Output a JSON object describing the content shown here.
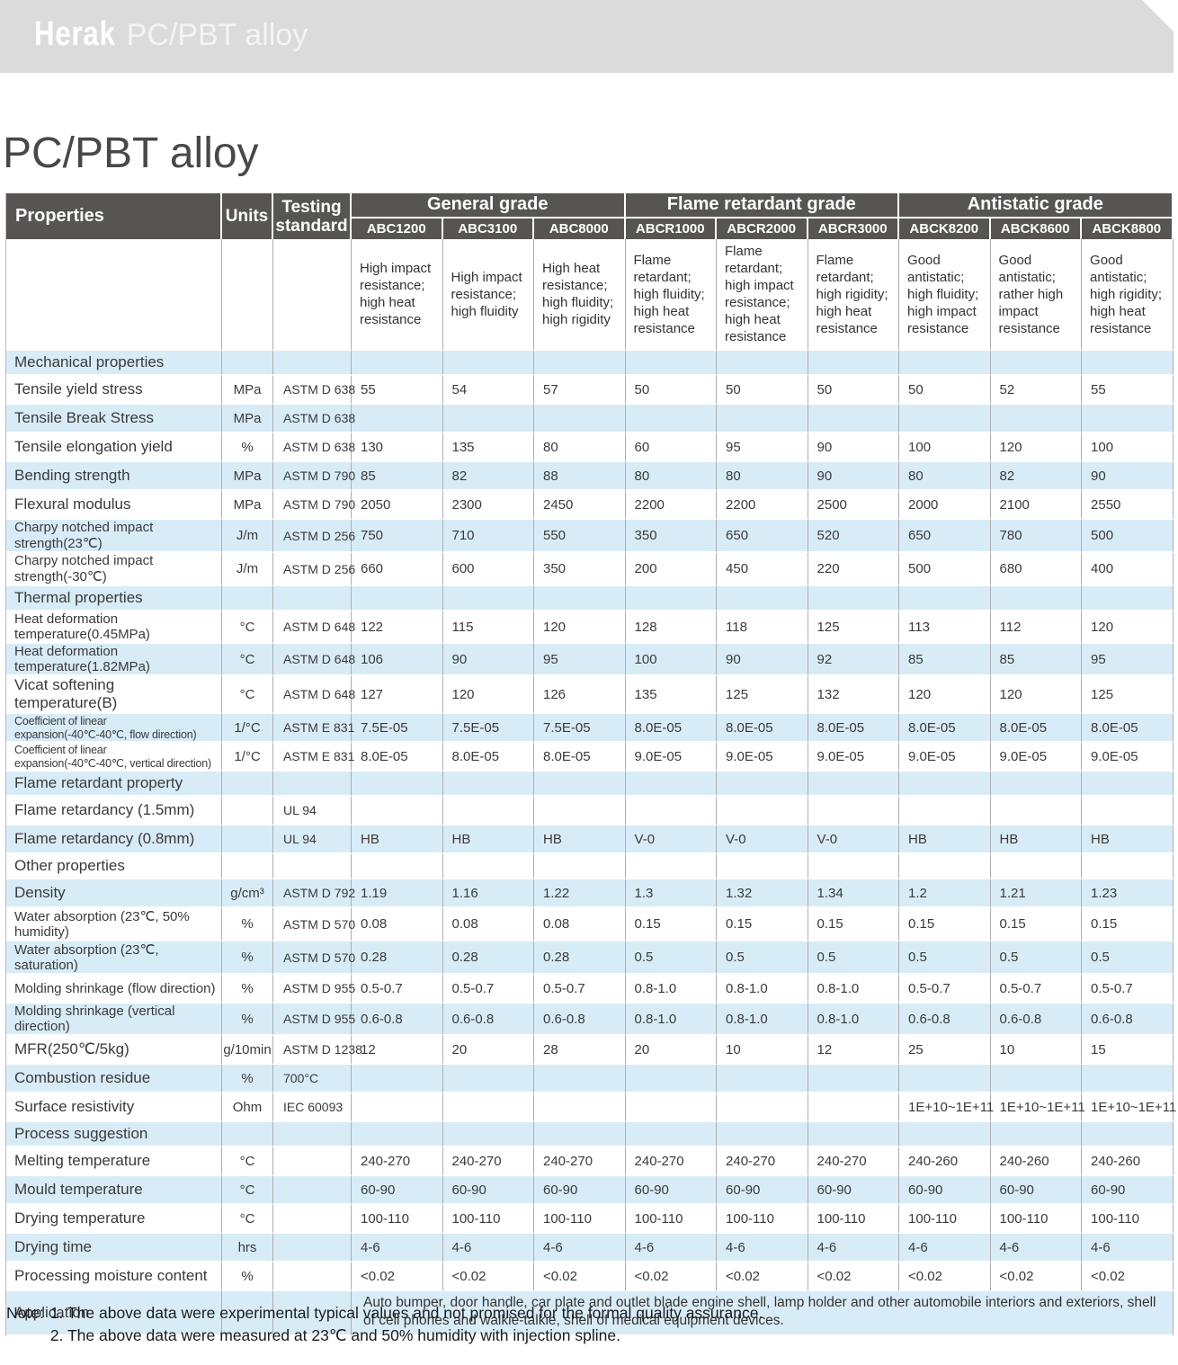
{
  "banner": {
    "logo": "Herak",
    "subtitle": "PC/PBT alloy"
  },
  "page_title": "PC/PBT alloy",
  "colors": {
    "header_bg": "#585454",
    "row_blue": "#d8ecf8",
    "banner_gray": "#dbdbdb"
  },
  "table": {
    "corner": {
      "properties": "Properties",
      "units": "Units",
      "standard": "Testing standard"
    },
    "groups": [
      {
        "label": "General grade",
        "grades": [
          "ABC1200",
          "ABC3100",
          "ABC8000"
        ]
      },
      {
        "label": "Flame retardant grade",
        "grades": [
          "ABCR1000",
          "ABCR2000",
          "ABCR3000"
        ]
      },
      {
        "label": "Antistatic grade",
        "grades": [
          "ABCK8200",
          "ABCK8600",
          "ABCK8800"
        ]
      }
    ],
    "descriptions": [
      "High impact resistance; high heat resistance",
      "High impact resistance; high fluidity",
      "High heat resistance; high fluidity; high rigidity",
      "Flame retardant; high fluidity; high heat resistance",
      "Flame retardant; high impact resistance; high heat resistance",
      "Flame retardant; high rigidity; high heat resistance",
      "Good antistatic; high fluidity; high impact resistance",
      "Good antistatic; rather high impact resistance",
      "Good antistatic; high rigidity; high heat resistance"
    ],
    "rows": [
      {
        "type": "section",
        "label": "Mechanical properties"
      },
      {
        "type": "data",
        "label": "Tensile yield stress",
        "unit": "MPa",
        "standard": "ASTM D 638",
        "values": [
          "55",
          "54",
          "57",
          "50",
          "50",
          "50",
          "50",
          "52",
          "55"
        ]
      },
      {
        "type": "data",
        "label": "Tensile Break Stress",
        "unit": "MPa",
        "standard": "ASTM D 638",
        "values": [
          "",
          "",
          "",
          "",
          "",
          "",
          "",
          "",
          ""
        ]
      },
      {
        "type": "data",
        "label": "Tensile elongation yield",
        "unit": "%",
        "standard": "ASTM D 638",
        "values": [
          "130",
          "135",
          "80",
          "60",
          "95",
          "90",
          "100",
          "120",
          "100"
        ]
      },
      {
        "type": "data",
        "label": "Bending strength",
        "unit": "MPa",
        "standard": "ASTM D 790",
        "values": [
          "85",
          "82",
          "88",
          "80",
          "80",
          "90",
          "80",
          "82",
          "90"
        ]
      },
      {
        "type": "data",
        "label": "Flexural modulus",
        "unit": "MPa",
        "standard": "ASTM D 790",
        "values": [
          "2050",
          "2300",
          "2450",
          "2200",
          "2200",
          "2500",
          "2000",
          "2100",
          "2550"
        ]
      },
      {
        "type": "data",
        "label": "Charpy notched impact strength(23℃)",
        "unit": "J/m",
        "standard": "ASTM D 256",
        "values": [
          "750",
          "710",
          "550",
          "350",
          "650",
          "520",
          "650",
          "780",
          "500"
        ]
      },
      {
        "type": "data",
        "label": "Charpy notched impact strength(-30℃)",
        "unit": "J/m",
        "standard": "ASTM D 256",
        "values": [
          "660",
          "600",
          "350",
          "200",
          "450",
          "220",
          "500",
          "680",
          "400"
        ]
      },
      {
        "type": "section",
        "label": "Thermal properties"
      },
      {
        "type": "data",
        "label": "Heat deformation temperature(0.45MPa)",
        "unit": "°C",
        "standard": "ASTM D 648",
        "values": [
          "122",
          "115",
          "120",
          "128",
          "118",
          "125",
          "113",
          "112",
          "120"
        ]
      },
      {
        "type": "data",
        "label": "Heat deformation temperature(1.82MPa)",
        "unit": "°C",
        "standard": "ASTM D 648",
        "values": [
          "106",
          "90",
          "95",
          "100",
          "90",
          "92",
          "85",
          "85",
          "95"
        ]
      },
      {
        "type": "data",
        "label": "Vicat softening temperature(B)",
        "unit": "°C",
        "standard": "ASTM D 648",
        "values": [
          "127",
          "120",
          "126",
          "135",
          "125",
          "132",
          "120",
          "120",
          "125"
        ]
      },
      {
        "type": "data",
        "label": "Coefficient of linear expansion(-40℃-40℃, flow direction)",
        "unit": "1/°C",
        "standard": "ASTM E 831",
        "values": [
          "7.5E-05",
          "7.5E-05",
          "7.5E-05",
          "8.0E-05",
          "8.0E-05",
          "8.0E-05",
          "8.0E-05",
          "8.0E-05",
          "8.0E-05"
        ]
      },
      {
        "type": "data",
        "label": "Coefficient of linear expansion(-40℃-40℃, vertical direction)",
        "unit": "1/°C",
        "standard": "ASTM E 831",
        "values": [
          "8.0E-05",
          "8.0E-05",
          "8.0E-05",
          "9.0E-05",
          "9.0E-05",
          "9.0E-05",
          "9.0E-05",
          "9.0E-05",
          "9.0E-05"
        ]
      },
      {
        "type": "section",
        "label": "Flame retardant property"
      },
      {
        "type": "data",
        "label": "Flame retardancy (1.5mm)",
        "unit": "",
        "standard": "UL 94",
        "values": [
          "",
          "",
          "",
          "",
          "",
          "",
          "",
          "",
          ""
        ]
      },
      {
        "type": "data",
        "label": "Flame retardancy (0.8mm)",
        "unit": "",
        "standard": "UL 94",
        "values": [
          "HB",
          "HB",
          "HB",
          "V-0",
          "V-0",
          "V-0",
          "HB",
          "HB",
          "HB"
        ]
      },
      {
        "type": "section",
        "label": "Other properties"
      },
      {
        "type": "data",
        "label": "Density",
        "unit": "g/cm³",
        "standard": "ASTM D 792",
        "values": [
          "1.19",
          "1.16",
          "1.22",
          "1.3",
          "1.32",
          "1.34",
          "1.2",
          "1.21",
          "1.23"
        ]
      },
      {
        "type": "data",
        "label": "Water absorption (23℃, 50% humidity)",
        "unit": "%",
        "standard": "ASTM D 570",
        "values": [
          "0.08",
          "0.08",
          "0.08",
          "0.15",
          "0.15",
          "0.15",
          "0.15",
          "0.15",
          "0.15"
        ]
      },
      {
        "type": "data",
        "label": "Water absorption (23℃, saturation)",
        "unit": "%",
        "standard": "ASTM D 570",
        "values": [
          "0.28",
          "0.28",
          "0.28",
          "0.5",
          "0.5",
          "0.5",
          "0.5",
          "0.5",
          "0.5"
        ]
      },
      {
        "type": "data",
        "label": "Molding shrinkage (flow direction)",
        "unit": "%",
        "standard": "ASTM D 955",
        "values": [
          "0.5-0.7",
          "0.5-0.7",
          "0.5-0.7",
          "0.8-1.0",
          "0.8-1.0",
          "0.8-1.0",
          "0.5-0.7",
          "0.5-0.7",
          "0.5-0.7"
        ]
      },
      {
        "type": "data",
        "label": "Molding shrinkage (vertical direction)",
        "unit": "%",
        "standard": "ASTM D 955",
        "values": [
          "0.6-0.8",
          "0.6-0.8",
          "0.6-0.8",
          "0.8-1.0",
          "0.8-1.0",
          "0.8-1.0",
          "0.6-0.8",
          "0.6-0.8",
          "0.6-0.8"
        ]
      },
      {
        "type": "data",
        "label": "MFR(250℃/5kg)",
        "unit": "g/10min",
        "standard": "ASTM D 1238",
        "values": [
          "12",
          "20",
          "28",
          "20",
          "10",
          "12",
          "25",
          "10",
          "15"
        ]
      },
      {
        "type": "data",
        "label": "Combustion residue",
        "unit": "%",
        "standard": "700°C",
        "values": [
          "",
          "",
          "",
          "",
          "",
          "",
          "",
          "",
          ""
        ]
      },
      {
        "type": "data",
        "label": "Surface resistivity",
        "unit": "Ohm",
        "standard": "IEC 60093",
        "values": [
          "",
          "",
          "",
          "",
          "",
          "",
          "1E+10~1E+11",
          "1E+10~1E+11",
          "1E+10~1E+11"
        ]
      },
      {
        "type": "section",
        "label": "Process suggestion"
      },
      {
        "type": "data",
        "label": "Melting temperature",
        "unit": "°C",
        "standard": "",
        "values": [
          "240-270",
          "240-270",
          "240-270",
          "240-270",
          "240-270",
          "240-270",
          "240-260",
          "240-260",
          "240-260"
        ]
      },
      {
        "type": "data",
        "label": "Mould temperature",
        "unit": "°C",
        "standard": "",
        "values": [
          "60-90",
          "60-90",
          "60-90",
          "60-90",
          "60-90",
          "60-90",
          "60-90",
          "60-90",
          "60-90"
        ]
      },
      {
        "type": "data",
        "label": "Drying temperature",
        "unit": "°C",
        "standard": "",
        "values": [
          "100-110",
          "100-110",
          "100-110",
          "100-110",
          "100-110",
          "100-110",
          "100-110",
          "100-110",
          "100-110"
        ]
      },
      {
        "type": "data",
        "label": "Drying time",
        "unit": "hrs",
        "standard": "",
        "values": [
          "4-6",
          "4-6",
          "4-6",
          "4-6",
          "4-6",
          "4-6",
          "4-6",
          "4-6",
          "4-6"
        ]
      },
      {
        "type": "data",
        "label": "Processing moisture content",
        "unit": "%",
        "standard": "",
        "values": [
          "<0.02",
          "<0.02",
          "<0.02",
          "<0.02",
          "<0.02",
          "<0.02",
          "<0.02",
          "<0.02",
          "<0.02"
        ]
      },
      {
        "type": "application",
        "label": "Application",
        "text": "Auto bumper, door handle, car plate and outlet blade engine shell, lamp holder and other automobile interiors and exteriors, shell of cell phones and walkie-talkie, shell of medical equipment devices."
      }
    ]
  },
  "notes": {
    "label": "Note:",
    "items": [
      "1. The above data were experimental typical values and not promised for the formal quality assurance.",
      "2. The above data were measured at 23℃ and 50% humidity with injection spline."
    ]
  }
}
